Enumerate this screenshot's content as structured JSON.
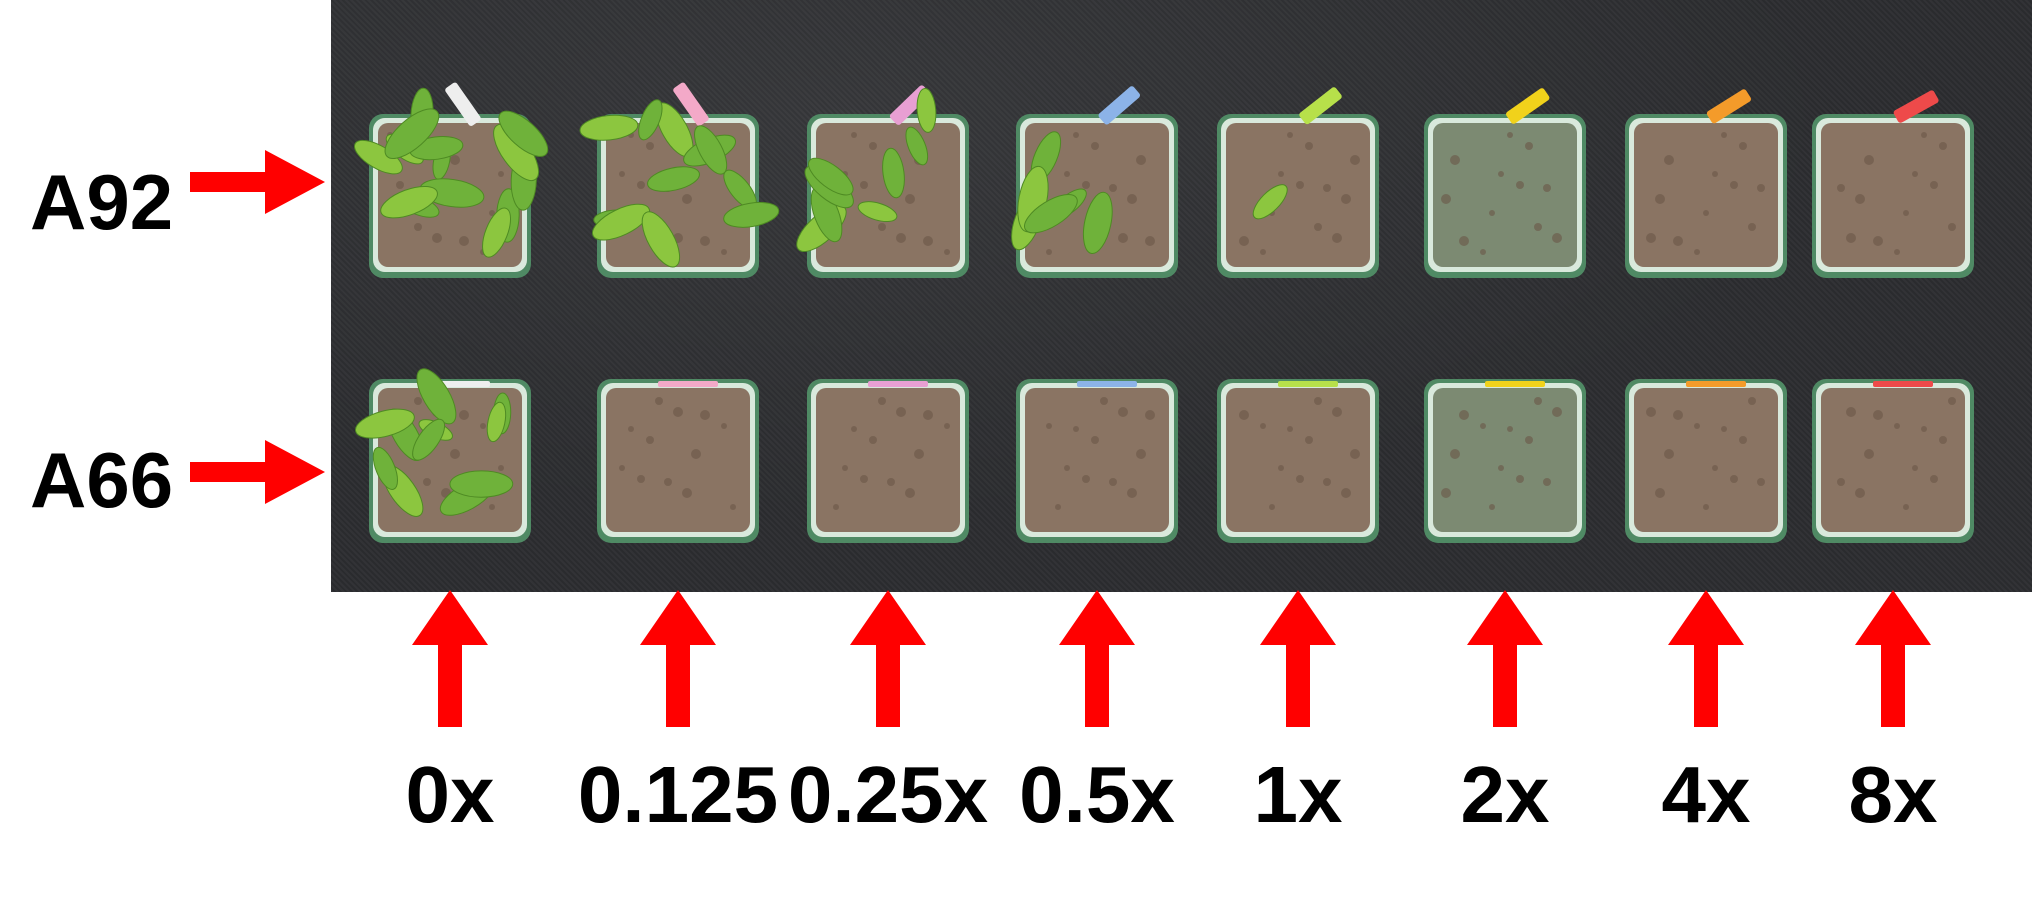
{
  "rows": [
    {
      "label": "A92",
      "label_top": 163,
      "arrow_top": 150,
      "pot_top": 120,
      "seedling_level": [
        1.0,
        0.8,
        0.55,
        0.4,
        0.05,
        0,
        0,
        0
      ]
    },
    {
      "label": "A66",
      "label_top": 441,
      "arrow_top": 440,
      "pot_top": 385,
      "seedling_level": [
        0.75,
        0,
        0,
        0,
        0,
        0,
        0,
        0
      ]
    }
  ],
  "doses": [
    "0x",
    "0.125",
    "0.25x",
    "0.5x",
    "1x",
    "2x",
    "4x",
    "8x"
  ],
  "colors": {
    "arrow": "#ff0000",
    "text": "#000000",
    "background": "#2b2c2f",
    "soil": "#8a7463",
    "leaf": "#6fb23a",
    "pot": "#4f8a64",
    "tag_colors": [
      "#eeeeee",
      "#f3a9c8",
      "#e89fd3",
      "#8cb3e8",
      "#b7e04a",
      "#f1d21b",
      "#f49b2a",
      "#ee4a4a"
    ]
  }
}
